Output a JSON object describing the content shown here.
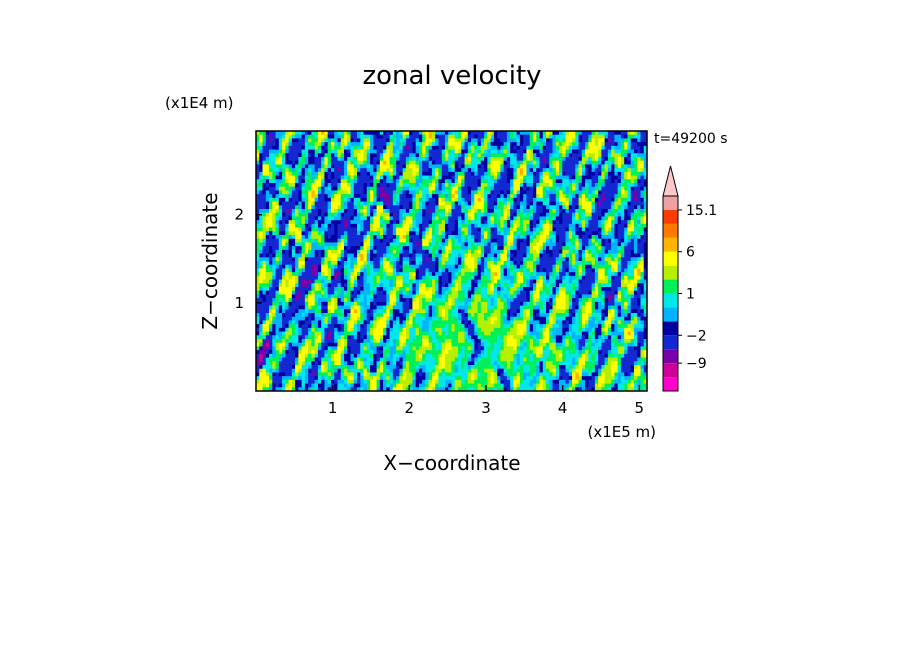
{
  "chart_data": {
    "type": "heatmap",
    "title": "zonal velocity",
    "xlabel": "X−coordinate",
    "ylabel": "Z−coordinate",
    "x_unit": "(x1E5 m)",
    "y_unit": "(x1E4 m)",
    "time_label": "t=49200 s",
    "xlim": [
      0,
      5.1
    ],
    "ylim": [
      0,
      2.95
    ],
    "x_ticks": [
      "1",
      "2",
      "3",
      "4",
      "5"
    ],
    "y_ticks": [
      "1",
      "2"
    ],
    "colorbar": {
      "levels": [
        -15.1,
        -12,
        -9,
        -6,
        -2,
        -1,
        0,
        1,
        2,
        3,
        6,
        9,
        12,
        15.1
      ],
      "colors": [
        "#ff00cc",
        "#cc0099",
        "#7a00a8",
        "#1428d2",
        "#0000a0",
        "#00b4ff",
        "#00e8e8",
        "#00f05a",
        "#b4f000",
        "#ffff00",
        "#ffb400",
        "#ff7800",
        "#ff3c00",
        "#f0a0a0",
        "#ffc8c8"
      ],
      "labels": [
        "15.1",
        "6",
        "1",
        "−2",
        "−9"
      ],
      "label_values": [
        15.1,
        6,
        1,
        -2,
        -9
      ],
      "extend": "max"
    },
    "grid": false
  }
}
